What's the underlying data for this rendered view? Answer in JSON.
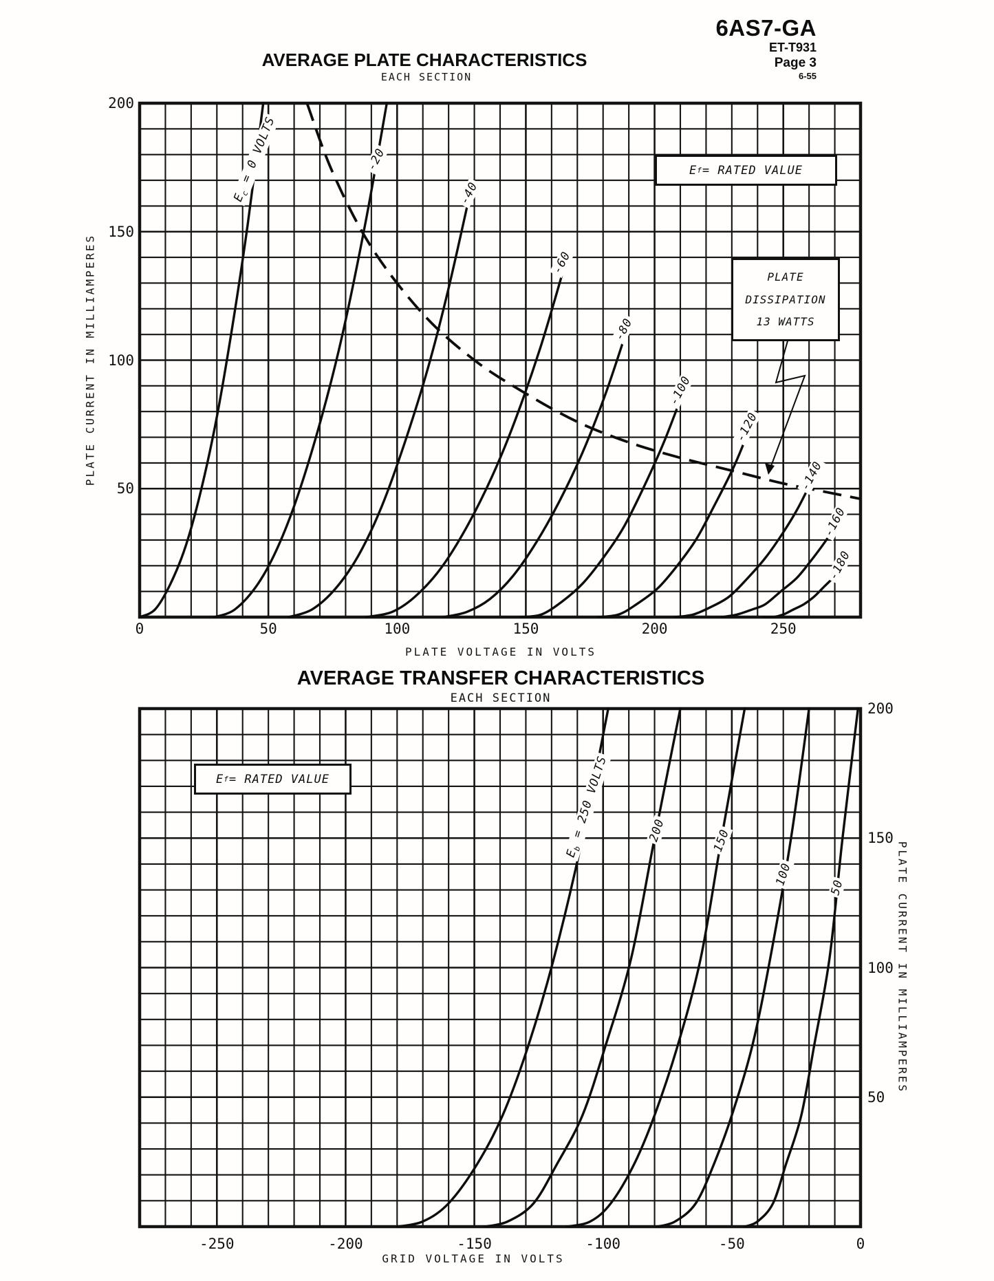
{
  "header": {
    "model": "6AS7-GA",
    "doc": "ET-T931",
    "page": "Page 3",
    "date": "6-55"
  },
  "chart_data": [
    {
      "type": "line",
      "title": "AVERAGE PLATE CHARACTERISTICS",
      "subtitle": "EACH SECTION",
      "xlabel": "PLATE VOLTAGE IN VOLTS",
      "ylabel": "PLATE CURRENT IN MILLIAMPERES",
      "xlim": [
        0,
        280
      ],
      "ylim": [
        0,
        200
      ],
      "xticks": [
        0,
        50,
        100,
        150,
        200,
        250
      ],
      "yticks": [
        50,
        100,
        150,
        200
      ],
      "grid_step": 10,
      "ylabel_side": "left",
      "grid": "on",
      "annotations": {
        "ef_box": {
          "pre": "E",
          "sub": "f",
          "post": " = RATED VALUE"
        },
        "dissipation_box": {
          "lines": [
            "PLATE",
            "DISSIPATION",
            "13 WATTS"
          ]
        }
      },
      "series": [
        {
          "name": "Ec = 0 VOLTS",
          "label": {
            "pre": "E",
            "sub": "c",
            "post": " = 0 VOLTS",
            "v": 45,
            "i": 178,
            "rot": -68
          },
          "points": [
            [
              0,
              0
            ],
            [
              6,
              3
            ],
            [
              12,
              13
            ],
            [
              18,
              28
            ],
            [
              24,
              50
            ],
            [
              30,
              78
            ],
            [
              36,
              113
            ],
            [
              42,
              153
            ],
            [
              48,
              200
            ]
          ]
        },
        {
          "name": "Ec = -20",
          "label": {
            "pre": "-20",
            "sub": "",
            "post": "",
            "v": 92,
            "i": 178,
            "rot": -62
          },
          "points": [
            [
              29,
              0
            ],
            [
              37,
              3
            ],
            [
              46,
              13
            ],
            [
              54,
              28
            ],
            [
              62,
              49
            ],
            [
              71,
              79
            ],
            [
              79,
              111
            ],
            [
              88,
              155
            ],
            [
              96,
              200
            ]
          ]
        },
        {
          "name": "Ec = -40",
          "label": {
            "pre": "-40",
            "sub": "",
            "post": "",
            "v": 128,
            "i": 165,
            "rot": -62
          },
          "points": [
            [
              58,
              0
            ],
            [
              67,
              3
            ],
            [
              76,
              11
            ],
            [
              85,
              24
            ],
            [
              94,
              43
            ],
            [
              103,
              68
            ],
            [
              112,
              97
            ],
            [
              120,
              128
            ],
            [
              129,
              168
            ]
          ]
        },
        {
          "name": "Ec = -60",
          "label": {
            "pre": "-60",
            "sub": "",
            "post": "",
            "v": 164,
            "i": 138,
            "rot": -62
          },
          "points": [
            [
              88,
              0
            ],
            [
              98,
              2
            ],
            [
              107,
              8
            ],
            [
              117,
              19
            ],
            [
              127,
              35
            ],
            [
              137,
              55
            ],
            [
              146,
              77
            ],
            [
              156,
              106
            ],
            [
              166,
              140
            ]
          ]
        },
        {
          "name": "Ec = -80",
          "label": {
            "pre": "-80",
            "sub": "",
            "post": "",
            "v": 188,
            "i": 112,
            "rot": -62
          },
          "points": [
            [
              118,
              0
            ],
            [
              127,
              2
            ],
            [
              136,
              7
            ],
            [
              145,
              16
            ],
            [
              154,
              29
            ],
            [
              163,
              45
            ],
            [
              172,
              64
            ],
            [
              181,
              87
            ],
            [
              190,
              114
            ]
          ]
        },
        {
          "name": "Ec = -100",
          "label": {
            "pre": "-100",
            "sub": "",
            "post": "",
            "v": 210,
            "i": 88,
            "rot": -62
          },
          "points": [
            [
              148,
              0
            ],
            [
              156,
              1
            ],
            [
              164,
              6
            ],
            [
              172,
              13
            ],
            [
              180,
              23
            ],
            [
              188,
              35
            ],
            [
              196,
              51
            ],
            [
              204,
              69
            ],
            [
              212,
              90
            ]
          ]
        },
        {
          "name": "Ec = -120",
          "label": {
            "pre": "-120",
            "sub": "",
            "post": "",
            "v": 236,
            "i": 74,
            "rot": -62
          },
          "points": [
            [
              178,
              0
            ],
            [
              186,
              1
            ],
            [
              193,
              5
            ],
            [
              201,
              11
            ],
            [
              208,
              19
            ],
            [
              216,
              30
            ],
            [
              223,
              43
            ],
            [
              231,
              59
            ],
            [
              238,
              76
            ]
          ]
        },
        {
          "name": "Ec = -140",
          "label": {
            "pre": "-140",
            "sub": "",
            "post": "",
            "v": 261,
            "i": 55,
            "rot": -62
          },
          "points": [
            [
              208,
              0
            ],
            [
              215,
              1
            ],
            [
              222,
              4
            ],
            [
              229,
              8
            ],
            [
              236,
              15
            ],
            [
              243,
              23
            ],
            [
              250,
              33
            ],
            [
              256,
              43
            ],
            [
              263,
              57
            ]
          ]
        },
        {
          "name": "Ec = -160",
          "label": {
            "pre": "-160",
            "sub": "",
            "post": "",
            "v": 270,
            "i": 37,
            "rot": -62
          },
          "points": [
            [
              226,
              0
            ],
            [
              232,
              1
            ],
            [
              238,
              3
            ],
            [
              243,
              5
            ],
            [
              249,
              10
            ],
            [
              255,
              15
            ],
            [
              260,
              21
            ],
            [
              266,
              29
            ],
            [
              272,
              38
            ]
          ]
        },
        {
          "name": "Ec = -180",
          "label": {
            "pre": "-180",
            "sub": "",
            "post": "",
            "v": 272,
            "i": 20,
            "rot": -62
          },
          "points": [
            [
              242,
              0
            ],
            [
              246,
              0
            ],
            [
              250,
              1
            ],
            [
              254,
              3
            ],
            [
              258,
              5
            ],
            [
              262,
              8
            ],
            [
              266,
              12
            ],
            [
              270,
              16
            ],
            [
              274,
              21
            ]
          ]
        }
      ],
      "dissipation_curve": {
        "watts": 13,
        "points": [
          [
            65,
            200
          ],
          [
            75,
            173
          ],
          [
            90,
            144
          ],
          [
            110,
            118
          ],
          [
            130,
            100
          ],
          [
            150,
            87
          ],
          [
            170,
            76
          ],
          [
            190,
            68
          ],
          [
            210,
            62
          ],
          [
            230,
            57
          ],
          [
            250,
            52
          ],
          [
            265,
            49
          ],
          [
            280,
            46
          ]
        ]
      }
    },
    {
      "type": "line",
      "title": "AVERAGE TRANSFER CHARACTERISTICS",
      "subtitle": "EACH SECTION",
      "xlabel": "GRID VOLTAGE IN VOLTS",
      "ylabel": "PLATE CURRENT IN MILLIAMPERES",
      "xlim": [
        -280,
        0
      ],
      "ylim": [
        0,
        200
      ],
      "xticks": [
        -250,
        -200,
        -150,
        -100,
        -50,
        0
      ],
      "yticks": [
        50,
        100,
        150,
        200
      ],
      "grid_step": 10,
      "ylabel_side": "right",
      "grid": "on",
      "annotations": {
        "ef_box": {
          "pre": "E",
          "sub": "f",
          "post": " = RATED VALUE"
        }
      },
      "series": [
        {
          "name": "Eb = 250 VOLTS",
          "label": {
            "pre": "E",
            "sub": "b",
            "post": " = 250 VOLTS",
            "v": -106,
            "i": 162,
            "rot": -72
          },
          "points": [
            [
              -180,
              0
            ],
            [
              -170,
              2
            ],
            [
              -160,
              9
            ],
            [
              -149,
              24
            ],
            [
              -139,
              43
            ],
            [
              -129,
              70
            ],
            [
              -119,
              104
            ],
            [
              -108,
              150
            ],
            [
              -98,
              200
            ]
          ]
        },
        {
          "name": "Eb = 200",
          "label": {
            "pre": "200",
            "sub": "",
            "post": "",
            "v": -79,
            "i": 153,
            "rot": -72
          },
          "points": [
            [
              -146,
              0
            ],
            [
              -137,
              2
            ],
            [
              -127,
              9
            ],
            [
              -118,
              24
            ],
            [
              -108,
              43
            ],
            [
              -99,
              70
            ],
            [
              -89,
              104
            ],
            [
              -80,
              150
            ],
            [
              -70,
              200
            ]
          ]
        },
        {
          "name": "Eb = 150",
          "label": {
            "pre": "150",
            "sub": "",
            "post": "",
            "v": -54,
            "i": 149,
            "rot": -70
          },
          "points": [
            [
              -114,
              0
            ],
            [
              -105,
              2
            ],
            [
              -97,
              9
            ],
            [
              -88,
              24
            ],
            [
              -80,
              43
            ],
            [
              -71,
              70
            ],
            [
              -62,
              104
            ],
            [
              -54,
              150
            ],
            [
              -45,
              200
            ]
          ]
        },
        {
          "name": "Eb = 100",
          "label": {
            "pre": "100",
            "sub": "",
            "post": "",
            "v": -30,
            "i": 136,
            "rot": -72
          },
          "points": [
            [
              -79,
              0
            ],
            [
              -72,
              2
            ],
            [
              -64,
              9
            ],
            [
              -57,
              24
            ],
            [
              -50,
              43
            ],
            [
              -42,
              70
            ],
            [
              -35,
              104
            ],
            [
              -27,
              150
            ],
            [
              -20,
              200
            ]
          ]
        },
        {
          "name": "Eb = 50",
          "label": {
            "pre": "50",
            "sub": "",
            "post": "",
            "v": -9,
            "i": 131,
            "rot": -75
          },
          "points": [
            [
              -45,
              0
            ],
            [
              -40,
              2
            ],
            [
              -34,
              9
            ],
            [
              -29,
              24
            ],
            [
              -23,
              43
            ],
            [
              -18,
              70
            ],
            [
              -12,
              104
            ],
            [
              -7,
              150
            ],
            [
              -1,
              200
            ]
          ]
        }
      ]
    }
  ]
}
